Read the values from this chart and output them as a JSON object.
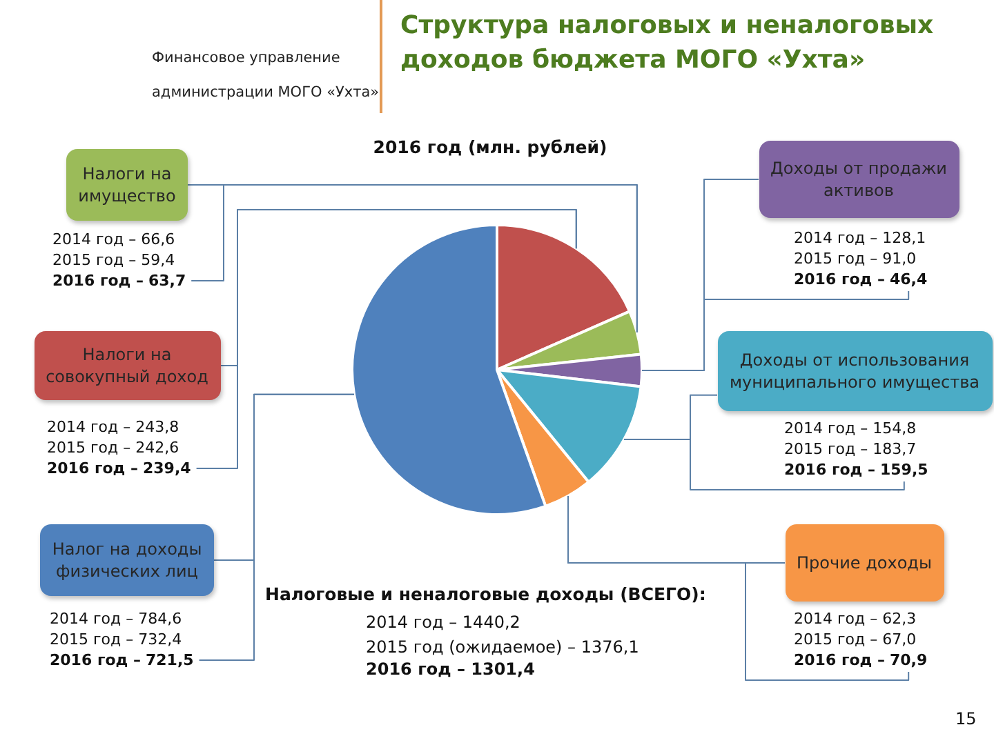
{
  "chart_data": {
    "type": "pie",
    "title": "Структура налоговых и неналоговых доходов бюджета МОГО «Ухта»",
    "subtitle": "2016 год (млн. рублей)",
    "categories": [
      "Налоги на совокупный доход",
      "Налоги на имущество",
      "Доходы от продажи активов",
      "Доходы от использования муниципального имущества",
      "Прочие доходы",
      "Налог на доходы физических лиц"
    ],
    "values": [
      239.4,
      63.7,
      46.4,
      159.5,
      70.9,
      721.5
    ],
    "colors": [
      "#c0504d",
      "#9bbb59",
      "#8064a2",
      "#4bacc6",
      "#f79646",
      "#4f81bd"
    ],
    "value_labels": [
      "239,4",
      "63,7",
      "46,4",
      "159,5",
      "70,9",
      "721,5"
    ],
    "annotations": [
      "2014 год – 243,8\n2015 год – 242,6",
      "2016 год –",
      "2014 год – 66,6\n2015 год – 59,4",
      "2016 год –",
      "2014 год – 128,1\n2015 год – 91,0",
      "2016 год –",
      "2014 год – 154,8\n2015 год – 183,7",
      "2016 год –",
      "2014 год – 62,3\n2015 год – 67,0",
      "2016 год –",
      "2014 год – 784,6\n2015 год – 732,4",
      "2016 год –",
      "Финансовое управление\nадминистрации МОГО «Ухта»",
      "Налоговые и неналоговые доходы (ВСЕГО):",
      "2014 год – 1440,2\n2015 год (ожидаемое) – 1376,1",
      "2016 год – 1301,4",
      "15"
    ]
  }
}
